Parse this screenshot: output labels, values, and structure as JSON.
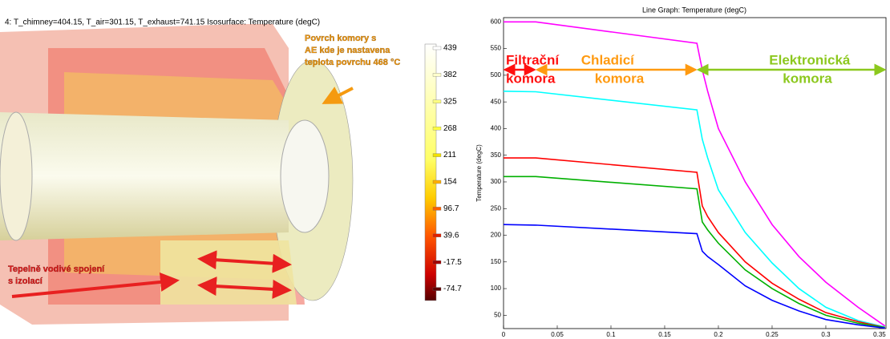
{
  "scene": {
    "title": "4: T_chimney=404.15, T_air=301.15, T_exhaust=741.15   Isosurface: Temperature (degC)",
    "annotation_top": [
      "Povrch komory s",
      "AE kde je nastavena",
      "teplota povrchu 468 °C"
    ],
    "annotation_bottom": [
      "Tepelně vodivé spojení",
      "s izolací"
    ],
    "colorbar_ticks": [
      439,
      382,
      325,
      268,
      211,
      154,
      96.7,
      39.6,
      -17.5,
      -74.7
    ]
  },
  "chart_data": {
    "type": "line",
    "title": "Line Graph: Temperature (degC)",
    "y_label": "Temperature (degC)",
    "x": [
      0,
      0.03,
      0.18,
      0.185,
      0.19,
      0.2,
      0.225,
      0.25,
      0.275,
      0.3,
      0.33,
      0.355
    ],
    "series": [
      {
        "color": "#ff00ff",
        "values": [
          600,
          600,
          560,
          510,
          470,
          400,
          300,
          220,
          160,
          112,
          65,
          30
        ]
      },
      {
        "color": "#00ffff",
        "values": [
          470,
          469,
          435,
          380,
          345,
          285,
          205,
          148,
          100,
          65,
          40,
          28
        ]
      },
      {
        "color": "#ff0000",
        "values": [
          345,
          345,
          318,
          255,
          235,
          205,
          150,
          110,
          80,
          55,
          38,
          27
        ]
      },
      {
        "color": "#00b000",
        "values": [
          310,
          310,
          287,
          225,
          210,
          185,
          135,
          100,
          72,
          50,
          35,
          27
        ]
      },
      {
        "color": "#0000ff",
        "values": [
          220,
          219,
          203,
          170,
          160,
          145,
          105,
          78,
          58,
          42,
          32,
          26
        ]
      }
    ],
    "xlim": [
      0,
      0.356
    ],
    "ylim": [
      25,
      608
    ],
    "xticks": [
      0,
      0.05,
      0.1,
      0.15,
      0.2,
      0.25,
      0.3,
      0.35
    ],
    "yticks": [
      50,
      100,
      150,
      200,
      250,
      300,
      350,
      400,
      450,
      500,
      550,
      600
    ],
    "annotations": [
      "Filtrační",
      "komora",
      "Chladicí",
      "komora",
      "Elektronická",
      "komora"
    ]
  }
}
